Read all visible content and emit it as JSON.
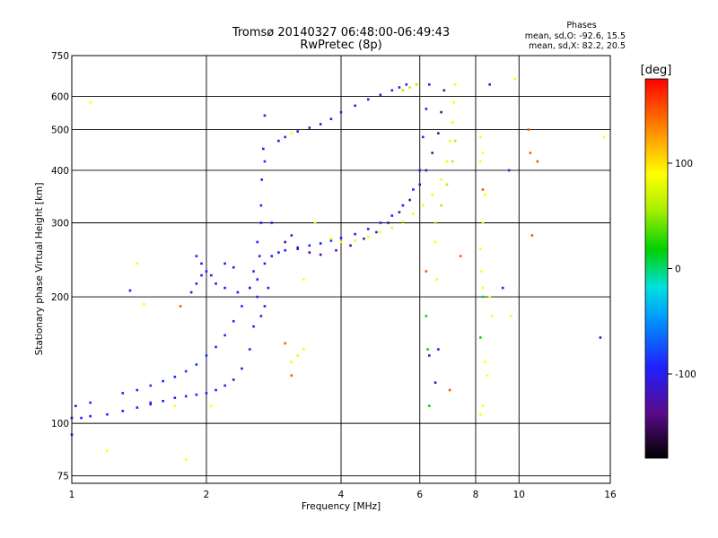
{
  "header": {
    "title_line1": "Tromsø 20140327 06:48:00-06:49:43",
    "title_line2": "RwPretec (8p)"
  },
  "stats": {
    "heading": "Phases",
    "line1": "mean, sd,O: -92.6, 15.5",
    "line2": "mean, sd,X:  82.2, 20.5"
  },
  "chart_data": {
    "type": "scatter",
    "xlabel": "Frequency [MHz]",
    "ylabel": "Stationary phase Virtual Height [km]",
    "x_scale": "log",
    "y_scale": "log",
    "xlim": [
      1,
      16
    ],
    "ylim": [
      72,
      750
    ],
    "x_ticks": [
      1,
      2,
      4,
      6,
      8,
      10,
      16
    ],
    "y_ticks": [
      75,
      100,
      200,
      300,
      400,
      500,
      600,
      750
    ],
    "grid": true,
    "colorbar": {
      "label": "[deg]",
      "range": [
        -180,
        180
      ],
      "ticks": [
        100,
        0,
        -100
      ]
    },
    "series": [
      {
        "phase": -95,
        "points": [
          [
            1.0,
            103
          ],
          [
            1.05,
            103
          ],
          [
            1.1,
            104
          ],
          [
            1.2,
            105
          ],
          [
            1.3,
            107
          ],
          [
            1.4,
            109
          ],
          [
            1.5,
            111
          ],
          [
            1.6,
            113
          ],
          [
            1.7,
            115
          ],
          [
            1.8,
            116
          ],
          [
            1.9,
            117
          ],
          [
            2.0,
            118
          ],
          [
            2.1,
            120
          ],
          [
            2.2,
            123
          ],
          [
            2.3,
            127
          ],
          [
            2.4,
            135
          ],
          [
            2.5,
            150
          ],
          [
            2.55,
            170
          ],
          [
            2.6,
            200
          ],
          [
            2.63,
            250
          ],
          [
            2.65,
            300
          ],
          [
            2.66,
            380
          ],
          [
            2.68,
            450
          ],
          [
            2.7,
            540
          ]
        ]
      },
      {
        "phase": -90,
        "points": [
          [
            1.4,
            120
          ],
          [
            1.5,
            123
          ],
          [
            1.6,
            126
          ],
          [
            1.7,
            129
          ],
          [
            1.8,
            133
          ],
          [
            1.9,
            138
          ],
          [
            2.0,
            145
          ],
          [
            2.1,
            152
          ],
          [
            2.2,
            162
          ],
          [
            2.3,
            175
          ],
          [
            2.4,
            190
          ],
          [
            2.5,
            210
          ],
          [
            2.55,
            230
          ],
          [
            2.6,
            270
          ],
          [
            2.65,
            330
          ],
          [
            2.7,
            420
          ]
        ]
      },
      {
        "phase": -95,
        "points": [
          [
            1.85,
            205
          ],
          [
            1.9,
            215
          ],
          [
            1.95,
            225
          ],
          [
            2.0,
            230
          ],
          [
            2.05,
            225
          ],
          [
            2.1,
            215
          ],
          [
            2.2,
            210
          ],
          [
            2.35,
            205
          ],
          [
            2.5,
            210
          ],
          [
            2.6,
            220
          ],
          [
            2.7,
            240
          ],
          [
            2.8,
            250
          ],
          [
            2.9,
            255
          ],
          [
            3.0,
            258
          ],
          [
            3.2,
            262
          ],
          [
            3.4,
            265
          ],
          [
            3.6,
            268
          ],
          [
            3.8,
            272
          ],
          [
            4.0,
            276
          ],
          [
            4.3,
            282
          ],
          [
            4.6,
            290
          ],
          [
            4.9,
            300
          ],
          [
            5.2,
            312
          ],
          [
            5.5,
            330
          ],
          [
            5.8,
            360
          ],
          [
            6.0,
            400
          ],
          [
            6.1,
            480
          ],
          [
            6.2,
            560
          ],
          [
            6.3,
            640
          ]
        ]
      },
      {
        "phase": -100,
        "points": [
          [
            2.9,
            470
          ],
          [
            3.0,
            480
          ],
          [
            3.2,
            495
          ],
          [
            3.4,
            505
          ],
          [
            3.6,
            515
          ],
          [
            3.8,
            530
          ],
          [
            4.0,
            550
          ],
          [
            4.3,
            570
          ],
          [
            4.6,
            590
          ],
          [
            4.9,
            605
          ],
          [
            5.2,
            620
          ],
          [
            5.4,
            630
          ],
          [
            5.6,
            640
          ]
        ]
      },
      {
        "phase": -130,
        "points": [
          [
            3.0,
            270
          ],
          [
            3.2,
            260
          ],
          [
            3.4,
            255
          ],
          [
            3.6,
            252
          ],
          [
            3.9,
            258
          ],
          [
            4.2,
            265
          ],
          [
            4.5,
            275
          ],
          [
            4.8,
            285
          ],
          [
            5.1,
            300
          ],
          [
            5.4,
            318
          ],
          [
            5.7,
            340
          ],
          [
            6.0,
            370
          ],
          [
            6.2,
            400
          ],
          [
            6.4,
            440
          ],
          [
            6.6,
            490
          ],
          [
            6.7,
            550
          ],
          [
            6.8,
            620
          ]
        ]
      },
      {
        "phase": 85,
        "points": [
          [
            3.5,
            300
          ],
          [
            3.8,
            275
          ],
          [
            4.0,
            270
          ],
          [
            4.3,
            272
          ],
          [
            4.6,
            278
          ],
          [
            4.9,
            285
          ],
          [
            5.2,
            292
          ],
          [
            5.5,
            302
          ],
          [
            5.8,
            315
          ],
          [
            6.1,
            330
          ],
          [
            6.4,
            350
          ],
          [
            6.7,
            380
          ],
          [
            6.9,
            420
          ],
          [
            7.0,
            470
          ],
          [
            7.1,
            520
          ],
          [
            7.15,
            580
          ],
          [
            7.2,
            640
          ],
          [
            3.2,
            145
          ],
          [
            3.3,
            150
          ],
          [
            3.1,
            140
          ]
        ]
      },
      {
        "phase": 60,
        "points": [
          [
            5.5,
            620
          ],
          [
            5.7,
            630
          ],
          [
            5.9,
            640
          ],
          [
            6.5,
            300
          ],
          [
            6.7,
            330
          ],
          [
            6.9,
            370
          ],
          [
            7.1,
            420
          ],
          [
            7.2,
            470
          ]
        ]
      },
      {
        "phase": -105,
        "points": [
          [
            1.0,
            94
          ],
          [
            1.02,
            110
          ],
          [
            1.1,
            112
          ],
          [
            1.3,
            118
          ],
          [
            1.35,
            207
          ],
          [
            1.5,
            112
          ],
          [
            2.75,
            210
          ],
          [
            2.8,
            300
          ],
          [
            2.7,
            190
          ],
          [
            2.65,
            180
          ],
          [
            1.95,
            240
          ],
          [
            1.9,
            250
          ],
          [
            2.2,
            240
          ],
          [
            2.3,
            235
          ],
          [
            3.1,
            280
          ],
          [
            6.3,
            145
          ],
          [
            6.5,
            125
          ],
          [
            6.6,
            150
          ],
          [
            8.6,
            640
          ],
          [
            9.5,
            400
          ],
          [
            9.2,
            210
          ],
          [
            15.2,
            160
          ]
        ]
      },
      {
        "phase": 90,
        "points": [
          [
            1.1,
            580
          ],
          [
            1.2,
            86
          ],
          [
            1.4,
            240
          ],
          [
            1.45,
            192
          ],
          [
            1.7,
            110
          ],
          [
            1.8,
            82
          ],
          [
            2.05,
            110
          ],
          [
            3.1,
            490
          ],
          [
            3.3,
            220
          ],
          [
            6.5,
            270
          ],
          [
            6.55,
            220
          ],
          [
            8.2,
            480
          ],
          [
            8.3,
            440
          ],
          [
            8.2,
            420
          ],
          [
            8.4,
            350
          ],
          [
            8.3,
            300
          ],
          [
            8.2,
            260
          ],
          [
            8.25,
            230
          ],
          [
            8.3,
            210
          ],
          [
            8.4,
            140
          ],
          [
            8.5,
            130
          ],
          [
            8.3,
            110
          ],
          [
            8.2,
            105
          ],
          [
            8.6,
            200
          ],
          [
            8.7,
            180
          ],
          [
            9.6,
            180
          ],
          [
            9.8,
            660
          ],
          [
            15.5,
            480
          ]
        ]
      },
      {
        "phase": 150,
        "points": [
          [
            1.75,
            190
          ],
          [
            3.1,
            130
          ],
          [
            6.2,
            230
          ],
          [
            7.0,
            120
          ],
          [
            10.5,
            500
          ],
          [
            10.6,
            440
          ],
          [
            11.0,
            420
          ],
          [
            10.7,
            280
          ],
          [
            8.3,
            360
          ],
          [
            7.4,
            250
          ],
          [
            3.0,
            155
          ]
        ]
      },
      {
        "phase": 20,
        "points": [
          [
            6.2,
            180
          ],
          [
            6.3,
            110
          ],
          [
            6.25,
            150
          ],
          [
            8.3,
            200
          ],
          [
            8.2,
            160
          ]
        ]
      }
    ]
  }
}
